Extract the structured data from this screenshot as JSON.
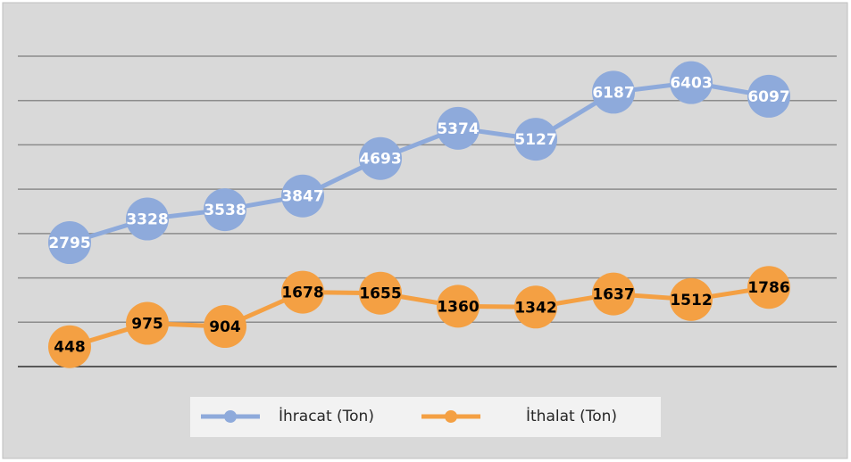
{
  "chart_data": {
    "type": "line",
    "categories": [
      null,
      null,
      null,
      null,
      null,
      null,
      null,
      null,
      null,
      null
    ],
    "series": [
      {
        "name": "İhracat (Ton)",
        "color": "#8eaadb",
        "label_color": "#ffffff",
        "values": [
          2795,
          3328,
          3538,
          3847,
          4693,
          5374,
          5127,
          6187,
          6403,
          6097
        ]
      },
      {
        "name": "İthalat (Ton)",
        "color": "#f4a043",
        "label_color": "#000000",
        "values": [
          448,
          975,
          904,
          1678,
          1655,
          1360,
          1342,
          1637,
          1512,
          1786
        ]
      }
    ],
    "ylim": [
      0,
      7000
    ],
    "yticks": [
      0,
      1000,
      2000,
      3000,
      4000,
      5000,
      6000,
      7000
    ],
    "grid": true,
    "legend": "bottom"
  }
}
